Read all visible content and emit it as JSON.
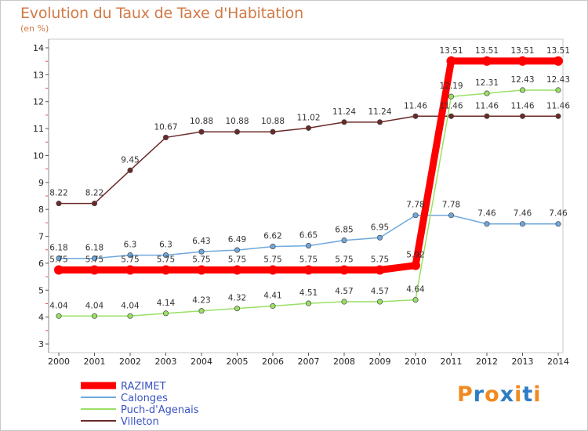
{
  "title": "Evolution du Taux de Taxe d'Habitation",
  "subtitle": "(en %)",
  "logo": "Proxiti",
  "colors": {
    "RAZIMET": "#ff0000",
    "Calonges": "#6fa8dc",
    "Puch-d'Agenais": "#99e066",
    "Villeton": "#6b2a2a",
    "title": "#d27a46",
    "legend_text": "#3a52c4"
  },
  "chart_data": {
    "type": "line",
    "x": [
      2000,
      2001,
      2002,
      2003,
      2004,
      2005,
      2006,
      2007,
      2008,
      2009,
      2010,
      2011,
      2012,
      2013,
      2014
    ],
    "ylim": [
      3,
      14
    ],
    "yticks": [
      3,
      4,
      5,
      6,
      7,
      8,
      9,
      10,
      11,
      12,
      13,
      14
    ],
    "grid": false,
    "legend": "bottom-left",
    "series": [
      {
        "name": "RAZIMET",
        "values": [
          5.75,
          5.75,
          5.75,
          5.75,
          5.75,
          5.75,
          5.75,
          5.75,
          5.75,
          5.75,
          5.92,
          13.51,
          13.51,
          13.51,
          13.51
        ],
        "labels": [
          "5.75",
          "5.75",
          "5.75",
          "5.75",
          "5.75",
          "5.75",
          "5.75",
          "5.75",
          "5.75",
          "5.75",
          "5.92",
          "13.51",
          "13.51",
          "13.51",
          "13.51"
        ]
      },
      {
        "name": "Calonges",
        "values": [
          6.18,
          6.18,
          6.3,
          6.3,
          6.43,
          6.49,
          6.62,
          6.65,
          6.85,
          6.95,
          7.78,
          7.78,
          7.46,
          7.46,
          7.46
        ],
        "labels": [
          "6.18",
          "6.18",
          "6.3",
          "6.3",
          "6.43",
          "6.49",
          "6.62",
          "6.65",
          "6.85",
          "6.95",
          "7.78",
          "7.78",
          "7.46",
          "7.46",
          "7.46"
        ]
      },
      {
        "name": "Puch-d'Agenais",
        "values": [
          4.04,
          4.04,
          4.04,
          4.14,
          4.23,
          4.32,
          4.41,
          4.51,
          4.57,
          4.57,
          4.64,
          12.19,
          12.31,
          12.43,
          12.43
        ],
        "labels": [
          "4.04",
          "4.04",
          "4.04",
          "4.14",
          "4.23",
          "4.32",
          "4.41",
          "4.51",
          "4.57",
          "4.57",
          "4.64",
          "12.19",
          "12.31",
          "12.43",
          "12.43"
        ]
      },
      {
        "name": "Villeton",
        "values": [
          8.22,
          8.22,
          9.45,
          10.67,
          10.88,
          10.88,
          10.88,
          11.02,
          11.24,
          11.24,
          11.46,
          11.46,
          11.46,
          11.46,
          11.46
        ],
        "labels": [
          "8.22",
          "8.22",
          "9.45",
          "10.67",
          "10.88",
          "10.88",
          "10.88",
          "11.02",
          "11.24",
          "11.24",
          "11.46",
          "11.46",
          "11.46",
          "11.46",
          "11.46"
        ]
      }
    ]
  }
}
